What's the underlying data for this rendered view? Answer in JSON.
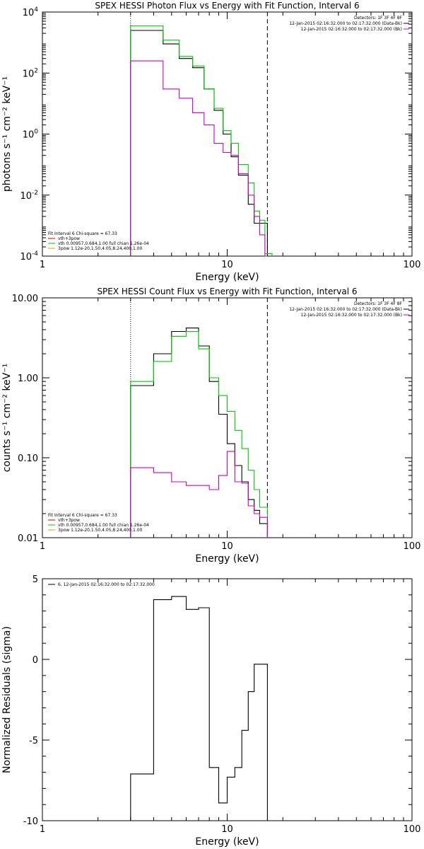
{
  "chart_data": [
    {
      "type": "line",
      "id": "photon",
      "title": "SPEX HESSI Photon Flux vs Energy with Fit Function, Interval 6",
      "xlabel": "Energy (keV)",
      "ylabel": "photons s⁻¹ cm⁻² keV⁻¹",
      "xscale": "log",
      "yscale": "log",
      "xlim": [
        1,
        100
      ],
      "ylim": [
        0.0001,
        10000
      ],
      "xticks": [
        "1",
        "10",
        "100"
      ],
      "yticks": [
        {
          "base": "10",
          "exp": "4",
          "value": 10000
        },
        {
          "base": "10",
          "exp": "2",
          "value": 100
        },
        {
          "base": "10",
          "exp": "0",
          "value": 1
        },
        {
          "base": "10",
          "exp": "-2",
          "value": 0.01
        },
        {
          "base": "10",
          "exp": "-4",
          "value": 0.0001
        }
      ],
      "vlines": [
        {
          "x": 3.0,
          "style": "dotted",
          "color": "#000000"
        },
        {
          "x": 16.5,
          "style": "dashed",
          "color": "#000000"
        }
      ],
      "legend_top": [
        "Detectors: 1F 3F 4F 8F",
        "12-Jan-2015 02:16:32.000 to 02:17:32.000 (Data-Bk)",
        "12-Jan-2015 02:16:32.000 to 02:17:32.000 (Bk)"
      ],
      "legend_top_colors": [
        "",
        "#000000",
        "#cc00cc"
      ],
      "legend_bottom": [
        "Fit Interval 6   Chi-square = 67.33",
        "vth+3pow",
        "vth 0.00957,0.684,1.00  full chian 1.26e-04",
        "3pow 1.12e-20,1.50,4.05,8.24,400,1.00"
      ],
      "legend_bottom_colors": [
        "",
        "#cc0000",
        "#00cc00",
        "#ccaa00"
      ],
      "series": [
        {
          "color": "#000000",
          "edges": [
            3.0,
            3.5,
            4.0,
            4.5,
            5.0,
            5.5,
            6.0,
            6.5,
            7.0,
            7.5,
            8.0,
            8.5,
            9.0,
            9.5,
            10.0,
            10.5,
            11.0,
            11.5,
            12.0,
            13.0,
            14.0,
            15.0,
            16.0,
            16.5
          ],
          "values": [
            2500,
            2500,
            2500,
            900,
            900,
            300,
            300,
            150,
            150,
            30,
            30,
            6,
            6,
            1.0,
            1.0,
            0.18,
            0.18,
            0.045,
            0.045,
            0.005,
            0.0012,
            0.0012,
            0.0012
          ]
        },
        {
          "color": "#00cc00",
          "edges": [
            3.0,
            3.5,
            4.0,
            4.5,
            5.0,
            5.5,
            6.0,
            6.5,
            7.0,
            7.5,
            8.0,
            8.5,
            9.0,
            9.5,
            10.0,
            10.5,
            11.0,
            11.5,
            12.0,
            13.0,
            14.0,
            15.0,
            16.0,
            17.5
          ],
          "values": [
            3500,
            3500,
            3500,
            1200,
            1200,
            350,
            350,
            170,
            170,
            30,
            30,
            7,
            7,
            1.3,
            1.3,
            0.5,
            0.5,
            0.1,
            0.1,
            0.025,
            0.003,
            0.0015,
            0.00012
          ]
        },
        {
          "color": "#cc00cc",
          "edges": [
            3.0,
            3.5,
            4.0,
            4.5,
            5.0,
            5.5,
            6.0,
            6.5,
            7.0,
            7.5,
            8.0,
            8.5,
            9.0,
            9.5,
            10.0,
            10.5,
            11.0,
            11.5,
            12.0,
            13.0,
            14.0,
            15.0,
            16.0,
            16.5
          ],
          "values": [
            250,
            250,
            250,
            30,
            30,
            15,
            15,
            5,
            5,
            2,
            2,
            0.5,
            0.5,
            0.25,
            0.25,
            0.2,
            0.2,
            0.05,
            0.05,
            0.01,
            0.002,
            0.0005,
            0.0001
          ]
        }
      ]
    },
    {
      "type": "line",
      "id": "count",
      "title": "SPEX HESSI Count Flux vs Energy with Fit Function, Interval 6",
      "xlabel": "Energy (keV)",
      "ylabel": "counts s⁻¹ cm⁻² keV⁻¹",
      "xscale": "log",
      "yscale": "log",
      "xlim": [
        1,
        100
      ],
      "ylim": [
        0.01,
        10
      ],
      "xticks": [
        "1",
        "10",
        "100"
      ],
      "yticks": [
        {
          "label": "10.00",
          "value": 10
        },
        {
          "label": "1.00",
          "value": 1
        },
        {
          "label": "0.10",
          "value": 0.1
        },
        {
          "label": "0.01",
          "value": 0.01
        }
      ],
      "vlines": [
        {
          "x": 3.0,
          "style": "dotted",
          "color": "#000000"
        },
        {
          "x": 16.5,
          "style": "dashed",
          "color": "#000000"
        }
      ],
      "legend_top": [
        "Detectors: 1F 3F 4F 8F",
        "12-Jan-2015 02:16:32.000 to 02:17:32.000 (Data-Bk)",
        "12-Jan-2015 02:16:32.000 to 02:17:32.000 (Bk)"
      ],
      "legend_top_colors": [
        "",
        "#000000",
        "#cc00cc"
      ],
      "legend_bottom": [
        "Fit Interval 6   Chi-square = 67.33",
        "vth+3pow",
        "vth 0.00957,0.684,1.00  full chian 1.26e-04",
        "3pow 1.12e-20,1.50,4.05,8.24,400,1.00"
      ],
      "legend_bottom_colors": [
        "",
        "#cc0000",
        "#00cc00",
        "#ccaa00"
      ],
      "series": [
        {
          "color": "#000000",
          "edges": [
            3.0,
            4.0,
            5.0,
            6.0,
            7.0,
            8.0,
            9.0,
            10.0,
            11.0,
            12.0,
            13.0,
            14.0,
            15.0,
            16.5
          ],
          "values": [
            0.8,
            2.0,
            3.8,
            4.2,
            2.5,
            0.9,
            0.35,
            0.15,
            0.08,
            0.05,
            0.03,
            0.022,
            0.015
          ]
        },
        {
          "color": "#00cc00",
          "edges": [
            3.0,
            4.0,
            5.0,
            6.0,
            7.0,
            8.0,
            9.0,
            10.0,
            11.0,
            12.0,
            13.0,
            14.0,
            15.0,
            16.5
          ],
          "values": [
            0.9,
            1.6,
            3.3,
            3.8,
            2.3,
            1.0,
            0.6,
            0.38,
            0.22,
            0.13,
            0.07,
            0.04,
            0.024
          ]
        },
        {
          "color": "#cc00cc",
          "edges": [
            3.0,
            4.0,
            5.0,
            6.0,
            7.0,
            8.0,
            9.0,
            10.0,
            11.0,
            12.0,
            13.0,
            14.0,
            15.0,
            16.5
          ],
          "values": [
            0.075,
            0.065,
            0.05,
            0.045,
            0.045,
            0.04,
            0.06,
            0.12,
            0.05,
            0.048,
            0.025,
            0.02,
            0.018
          ]
        }
      ]
    },
    {
      "type": "line",
      "id": "residual",
      "title": "",
      "xlabel": "Energy (keV)",
      "ylabel": "Normalized Residuals (sigma)",
      "xscale": "log",
      "yscale": "linear",
      "xlim": [
        1,
        100
      ],
      "ylim": [
        -10,
        5
      ],
      "xticks": [
        "1",
        "10",
        "100"
      ],
      "yticks": [
        {
          "label": "5",
          "value": 5
        },
        {
          "label": "0",
          "value": 0
        },
        {
          "label": "-5",
          "value": -5
        },
        {
          "label": "-10",
          "value": -10
        }
      ],
      "vlines": [],
      "legend_top": [
        "6, 12-Jan-2015 02:16:32.000 to 02:17:32.000"
      ],
      "legend_top_colors": [
        "#000000"
      ],
      "legend_bottom": [],
      "legend_bottom_colors": [],
      "series": [
        {
          "color": "#000000",
          "edges": [
            3.0,
            4.0,
            5.0,
            6.0,
            7.0,
            8.0,
            9.0,
            10.0,
            11.0,
            12.0,
            13.0,
            14.0,
            15.0,
            16.5
          ],
          "values": [
            -7.1,
            3.7,
            3.9,
            3.1,
            3.2,
            -6.7,
            -8.9,
            -7.3,
            -6.7,
            -4.4,
            -2.0,
            -0.3,
            -0.3
          ]
        }
      ]
    }
  ]
}
